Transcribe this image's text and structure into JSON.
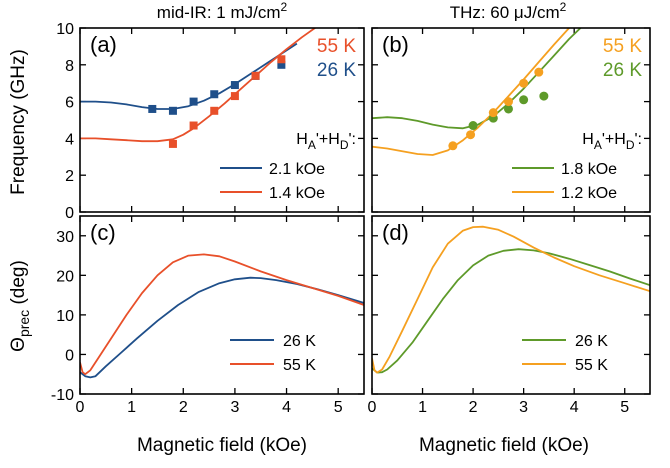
{
  "colors": {
    "blue": "#1f4f8a",
    "red": "#e8502a",
    "green": "#5e9a2a",
    "orange": "#f5a020"
  },
  "titles": {
    "left": "mid-IR: 1 mJ/cm",
    "left_sup": "2",
    "right": "THz: 60 μJ/cm",
    "right_sup": "2"
  },
  "x_label": "Magnetic field (kOe)",
  "top_y_label": "Frequency (GHz)",
  "bottom_y_label": {
    "main": "Θ",
    "sub": "prec",
    "rest": " (deg)"
  },
  "x_ticks": [
    "0",
    "1",
    "2",
    "3",
    "4",
    "5"
  ],
  "top_y_ticks": [
    "0",
    "2",
    "4",
    "6",
    "8",
    "10"
  ],
  "bottom_y_ticks": [
    "-10",
    "0",
    "10",
    "20",
    "30"
  ],
  "legend_title": {
    "h1": "H",
    "s1": "A",
    "mid": "'+H",
    "s2": "D",
    "end": "':"
  },
  "chart_data": [
    {
      "panel": "(a)",
      "type": "line+scatter",
      "xlabel": "Magnetic field (kOe)",
      "ylabel": "Frequency (GHz)",
      "xlim": [
        0,
        5.5
      ],
      "ylim": [
        0,
        10
      ],
      "temps": [
        {
          "label": "55 K",
          "color": "#e8502a"
        },
        {
          "label": "26 K",
          "color": "#1f4f8a"
        }
      ],
      "series": [
        {
          "name": "2.1 kOe",
          "color": "#1f4f8a",
          "x": [
            0,
            0.3,
            0.6,
            0.9,
            1.2,
            1.5,
            1.8,
            2.1,
            2.4,
            2.7,
            3.0,
            3.3,
            3.6,
            3.9,
            4.2
          ],
          "y": [
            6.0,
            6.0,
            5.95,
            5.85,
            5.7,
            5.6,
            5.6,
            5.75,
            6.05,
            6.45,
            6.95,
            7.5,
            8.05,
            8.6,
            9.15
          ]
        },
        {
          "name": "1.4 kOe",
          "color": "#e8502a",
          "x": [
            0,
            0.3,
            0.6,
            0.9,
            1.2,
            1.5,
            1.8,
            2.0,
            2.2,
            2.5,
            2.8,
            3.1,
            3.4,
            3.7,
            4.0,
            4.3,
            4.6,
            4.8
          ],
          "y": [
            4.0,
            4.0,
            3.95,
            3.9,
            3.85,
            3.85,
            3.95,
            4.2,
            4.55,
            5.2,
            5.9,
            6.65,
            7.4,
            8.15,
            8.85,
            9.5,
            10.1,
            10.5
          ]
        }
      ],
      "points": [
        {
          "color": "#1f4f8a",
          "shape": "square",
          "x": [
            1.4,
            1.8,
            2.2,
            2.6,
            3.0,
            3.4,
            3.9
          ],
          "y": [
            5.6,
            5.5,
            6.0,
            6.4,
            6.9,
            7.4,
            8.0
          ]
        },
        {
          "color": "#e8502a",
          "shape": "square",
          "x": [
            1.8,
            2.2,
            2.6,
            3.0,
            3.4,
            3.9
          ],
          "y": [
            3.7,
            4.7,
            5.5,
            6.3,
            7.4,
            8.3
          ]
        }
      ]
    },
    {
      "panel": "(b)",
      "type": "line+scatter",
      "xlabel": "Magnetic field (kOe)",
      "ylabel": "",
      "xlim": [
        0,
        5.5
      ],
      "ylim": [
        0,
        10
      ],
      "temps": [
        {
          "label": "55 K",
          "color": "#f5a020"
        },
        {
          "label": "26 K",
          "color": "#5e9a2a"
        }
      ],
      "series": [
        {
          "name": "1.8 kOe",
          "color": "#5e9a2a",
          "x": [
            0,
            0.3,
            0.6,
            0.9,
            1.2,
            1.5,
            1.8,
            2.1,
            2.4,
            2.7,
            3.0,
            3.3,
            3.6,
            3.9,
            4.2
          ],
          "y": [
            5.1,
            5.15,
            5.1,
            4.95,
            4.75,
            4.6,
            4.55,
            4.75,
            5.2,
            5.9,
            6.7,
            7.6,
            8.5,
            9.4,
            10.2
          ]
        },
        {
          "name": "1.2 kOe",
          "color": "#f5a020",
          "x": [
            0,
            0.3,
            0.6,
            0.9,
            1.2,
            1.5,
            1.8,
            2.1,
            2.4,
            2.7,
            3.0,
            3.3,
            3.6,
            3.9,
            4.1
          ],
          "y": [
            3.55,
            3.45,
            3.3,
            3.15,
            3.1,
            3.35,
            3.9,
            4.6,
            5.4,
            6.3,
            7.2,
            8.15,
            9.1,
            10.0,
            10.6
          ]
        }
      ],
      "points": [
        {
          "color": "#5e9a2a",
          "shape": "circle",
          "x": [
            2.0,
            2.4,
            2.7,
            3.0,
            3.4
          ],
          "y": [
            4.7,
            5.1,
            5.6,
            6.1,
            6.3
          ]
        },
        {
          "color": "#f5a020",
          "shape": "circle",
          "x": [
            1.6,
            1.95,
            2.4,
            2.7,
            3.0,
            3.3
          ],
          "y": [
            3.6,
            4.2,
            5.4,
            6.0,
            7.0,
            7.6
          ]
        }
      ]
    },
    {
      "panel": "(c)",
      "type": "line",
      "xlabel": "Magnetic field (kOe)",
      "ylabel": "Θprec (deg)",
      "xlim": [
        0,
        5.5
      ],
      "ylim": [
        -10,
        35
      ],
      "series": [
        {
          "name": "26 K",
          "color": "#1f4f8a",
          "x": [
            0,
            0.1,
            0.2,
            0.3,
            0.5,
            0.8,
            1.1,
            1.5,
            1.9,
            2.3,
            2.7,
            3.0,
            3.3,
            3.5,
            3.8,
            4.2,
            4.6,
            5.0,
            5.5
          ],
          "y": [
            -4.5,
            -5.5,
            -5.8,
            -5.5,
            -3.0,
            0.5,
            4.0,
            8.5,
            12.5,
            15.8,
            18.0,
            19.0,
            19.4,
            19.3,
            18.8,
            17.8,
            16.5,
            15.0,
            13.0
          ]
        },
        {
          "name": "55 K",
          "color": "#e8502a",
          "x": [
            0,
            0.05,
            0.1,
            0.2,
            0.35,
            0.6,
            0.9,
            1.2,
            1.5,
            1.8,
            2.1,
            2.4,
            2.7,
            3.0,
            3.5,
            4.0,
            4.5,
            5.0,
            5.5
          ],
          "y": [
            -2.0,
            -4.5,
            -5.0,
            -4.0,
            -1.0,
            4.0,
            10.0,
            15.5,
            20.0,
            23.3,
            25.0,
            25.3,
            24.8,
            23.5,
            21.0,
            18.8,
            16.8,
            14.8,
            12.5
          ]
        }
      ]
    },
    {
      "panel": "(d)",
      "type": "line",
      "xlabel": "Magnetic field (kOe)",
      "ylabel": "",
      "xlim": [
        0,
        5.5
      ],
      "ylim": [
        -10,
        35
      ],
      "series": [
        {
          "name": "26 K",
          "color": "#5e9a2a",
          "x": [
            0,
            0.1,
            0.2,
            0.3,
            0.5,
            0.8,
            1.1,
            1.4,
            1.7,
            2.0,
            2.3,
            2.6,
            2.9,
            3.2,
            3.5,
            3.9,
            4.3,
            4.7,
            5.1,
            5.5
          ],
          "y": [
            -3.5,
            -4.6,
            -4.5,
            -3.8,
            -1.5,
            3.0,
            8.5,
            14.0,
            18.8,
            22.5,
            25.0,
            26.2,
            26.6,
            26.3,
            25.6,
            24.2,
            22.6,
            21.0,
            19.2,
            17.5
          ]
        },
        {
          "name": "55 K",
          "color": "#f5a020",
          "x": [
            0,
            0.05,
            0.1,
            0.2,
            0.35,
            0.6,
            0.9,
            1.2,
            1.5,
            1.8,
            2.0,
            2.2,
            2.5,
            2.8,
            3.2,
            3.6,
            4.0,
            4.5,
            5.0,
            5.5
          ],
          "y": [
            -1.0,
            -4.0,
            -4.6,
            -3.8,
            -0.5,
            6.0,
            14.0,
            22.0,
            28.0,
            31.3,
            32.2,
            32.3,
            31.5,
            29.8,
            27.0,
            24.5,
            22.3,
            20.0,
            18.0,
            16.0
          ]
        }
      ]
    }
  ]
}
